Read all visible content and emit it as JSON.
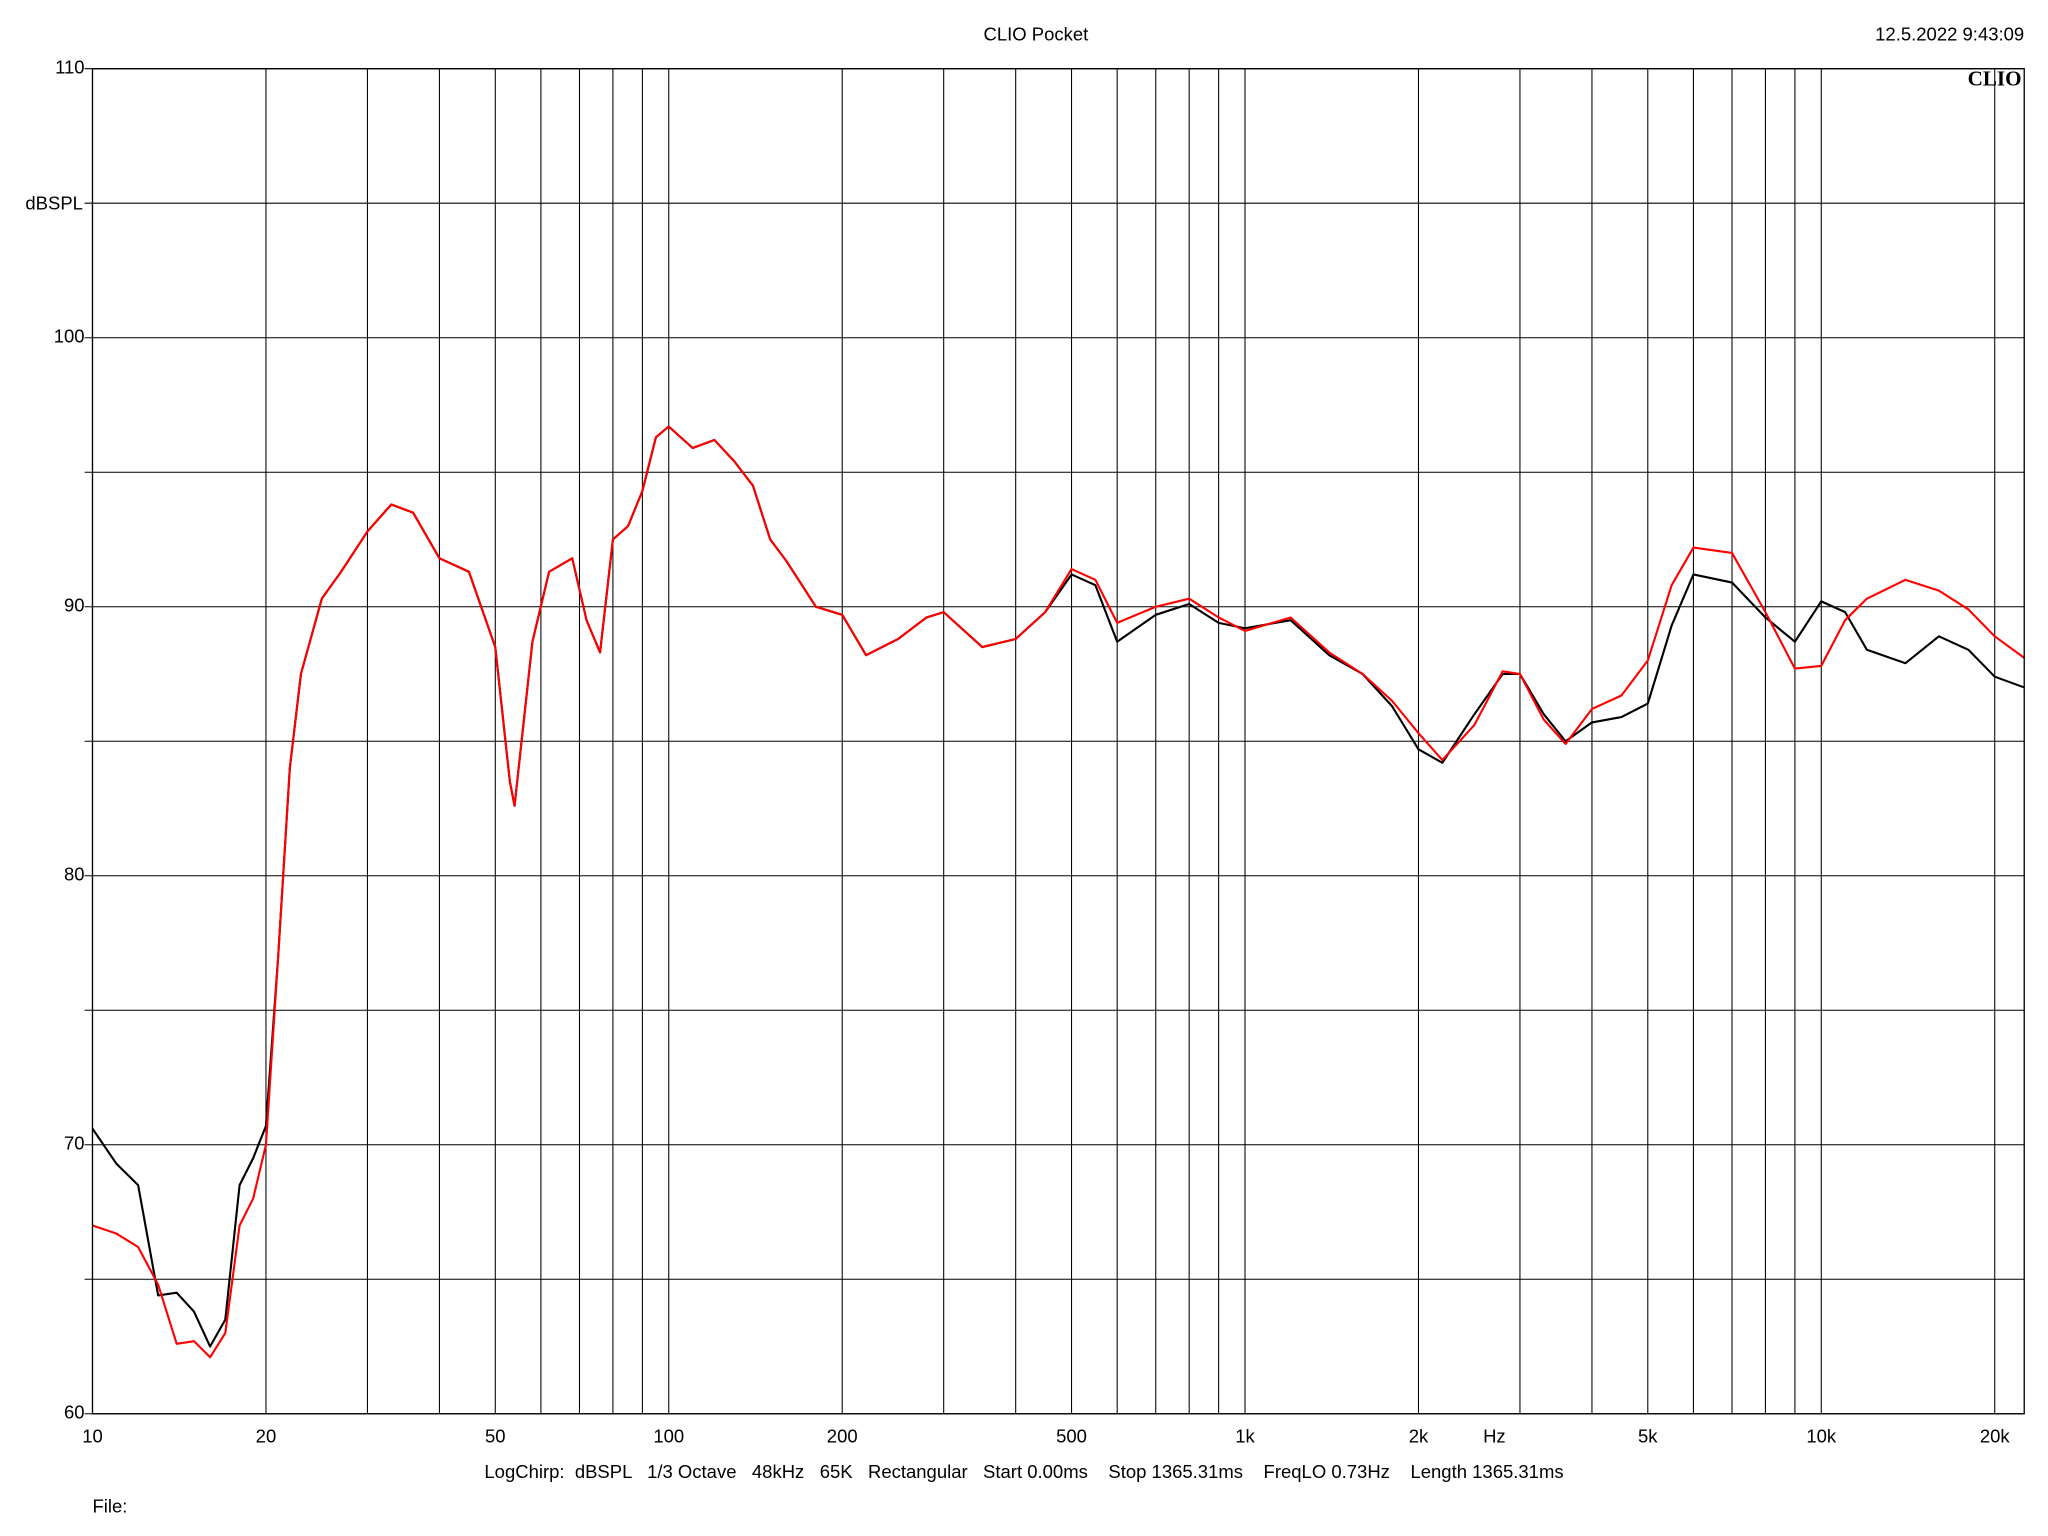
{
  "chart_data": {
    "type": "line",
    "title": "CLIO Pocket",
    "timestamp": "12.5.2022 9:43:09",
    "logo": "CLIO",
    "y_label": "dBSPL",
    "x_label": "Hz",
    "footer": "LogChirp:  dBSPL   1/3 Octave   48kHz   65K   Rectangular   Start 0.00ms    Stop 1365.31ms    FreqLO 0.73Hz    Length 1365.31ms",
    "file_label": "File:",
    "x_log": true,
    "grid": true,
    "xlim": [
      10,
      22500
    ],
    "ylim": [
      60,
      110
    ],
    "xticks": [
      10,
      20,
      50,
      100,
      200,
      500,
      {
        "value": 1000,
        "label": "1k"
      },
      {
        "value": 2000,
        "label": "2k"
      },
      {
        "value": 5000,
        "label": "5k"
      },
      {
        "value": 10000,
        "label": "10k"
      },
      {
        "value": 20000,
        "label": "20k"
      }
    ],
    "x_minor_ticks": [
      30,
      40,
      60,
      70,
      80,
      90,
      300,
      400,
      600,
      700,
      800,
      900,
      3000,
      4000,
      6000,
      7000,
      8000,
      9000
    ],
    "yticks": [
      60,
      70,
      80,
      90,
      100,
      110
    ],
    "y_minor_ticks": [
      65,
      75,
      85,
      95,
      105
    ],
    "x": [
      10,
      11,
      12,
      13,
      14,
      15,
      16,
      17,
      18,
      19,
      20,
      21,
      22,
      23,
      25,
      27,
      30,
      33,
      36,
      40,
      45,
      50,
      53,
      54,
      58,
      62,
      68,
      72,
      76,
      80,
      85,
      90,
      95,
      100,
      110,
      120,
      130,
      140,
      150,
      160,
      180,
      200,
      220,
      250,
      280,
      300,
      350,
      400,
      450,
      500,
      550,
      600,
      700,
      800,
      900,
      1000,
      1200,
      1400,
      1600,
      1800,
      2000,
      2200,
      2500,
      2800,
      3000,
      3300,
      3600,
      4000,
      4500,
      5000,
      5500,
      6000,
      7000,
      8000,
      9000,
      10000,
      11000,
      12000,
      14000,
      16000,
      18000,
      20000,
      22500
    ],
    "series": [
      {
        "color": "#000000",
        "values": [
          70.6,
          69.3,
          68.5,
          64.4,
          64.5,
          63.8,
          62.5,
          63.5,
          68.5,
          69.5,
          70.7,
          77,
          84,
          87.5,
          90.3,
          91.3,
          92.8,
          93.8,
          93.5,
          91.8,
          91.3,
          88.5,
          83.5,
          82.6,
          88.7,
          91.3,
          91.8,
          89.5,
          88.3,
          92.5,
          93.0,
          94.3,
          96.3,
          96.7,
          95.9,
          96.2,
          95.4,
          94.5,
          92.5,
          91.7,
          90.0,
          89.7,
          88.2,
          88.8,
          89.6,
          89.8,
          88.5,
          88.8,
          89.8,
          91.2,
          90.8,
          88.7,
          89.7,
          90.1,
          89.4,
          89.2,
          89.5,
          88.2,
          87.5,
          86.3,
          84.7,
          84.2,
          86.0,
          87.5,
          87.5,
          86.0,
          85.0,
          85.7,
          85.9,
          86.4,
          89.3,
          91.2,
          90.9,
          89.6,
          88.7,
          90.2,
          89.8,
          88.4,
          87.9,
          88.9,
          88.4,
          87.4,
          87.0
        ]
      },
      {
        "color": "#ff0000",
        "values": [
          67,
          66.7,
          66.2,
          64.8,
          62.6,
          62.7,
          62.1,
          63,
          67,
          68,
          70,
          77,
          84,
          87.5,
          90.3,
          91.3,
          92.8,
          93.8,
          93.5,
          91.8,
          91.3,
          88.5,
          83.5,
          82.6,
          88.7,
          91.3,
          91.8,
          89.5,
          88.3,
          92.5,
          93.0,
          94.3,
          96.3,
          96.7,
          95.9,
          96.2,
          95.4,
          94.5,
          92.5,
          91.7,
          90.0,
          89.7,
          88.2,
          88.8,
          89.6,
          89.8,
          88.5,
          88.8,
          89.8,
          91.4,
          91.0,
          89.4,
          90.0,
          90.3,
          89.6,
          89.1,
          89.6,
          88.3,
          87.5,
          86.5,
          85.3,
          84.3,
          85.6,
          87.6,
          87.5,
          85.8,
          84.9,
          86.2,
          86.7,
          88.0,
          90.8,
          92.2,
          92.0,
          89.8,
          87.7,
          87.8,
          89.5,
          90.3,
          91.0,
          90.6,
          89.9,
          88.9,
          88.1
        ]
      }
    ]
  }
}
